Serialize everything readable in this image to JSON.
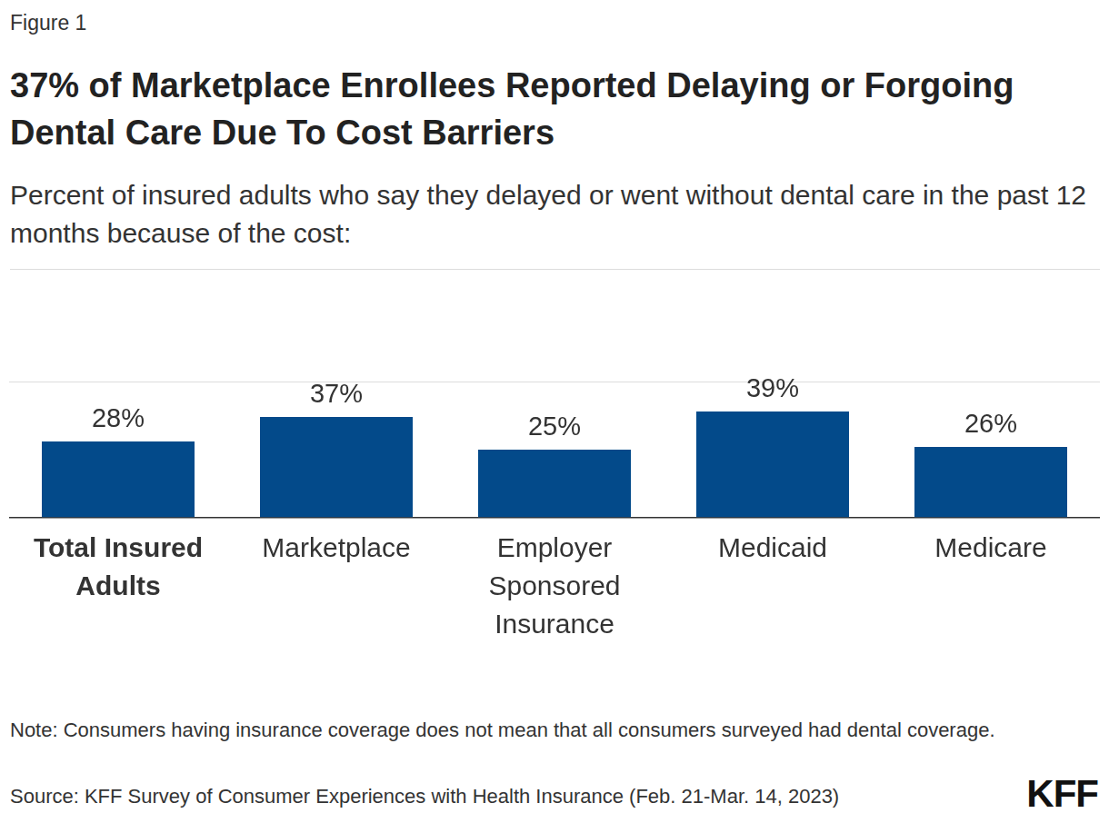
{
  "chart_data": {
    "type": "bar",
    "figure_label": "Figure 1",
    "title": "37% of Marketplace Enrollees Reported Delaying or Forgoing Dental Care Due To Cost Barriers",
    "subtitle": "Percent of insured adults who say they delayed or went without dental care in the past 12 months because of the cost:",
    "categories": [
      "Total Insured Adults",
      "Marketplace",
      "Employer Sponsored Insurance",
      "Medicaid",
      "Medicare"
    ],
    "values": [
      28,
      37,
      25,
      39,
      26
    ],
    "value_labels": [
      "28%",
      "37%",
      "25%",
      "39%",
      "26%"
    ],
    "color": "#034a8a",
    "ylim": [
      0,
      50
    ],
    "yticks": [
      0,
      50
    ],
    "grid": true,
    "data_labels": true,
    "tick_labels": "x",
    "note": "Note: Consumers having insurance coverage does not mean that all consumers surveyed had dental coverage.",
    "source": "Source: KFF Survey of Consumer Experiences with Health Insurance (Feb. 21-Mar. 14, 2023)",
    "logo": "KFF"
  }
}
